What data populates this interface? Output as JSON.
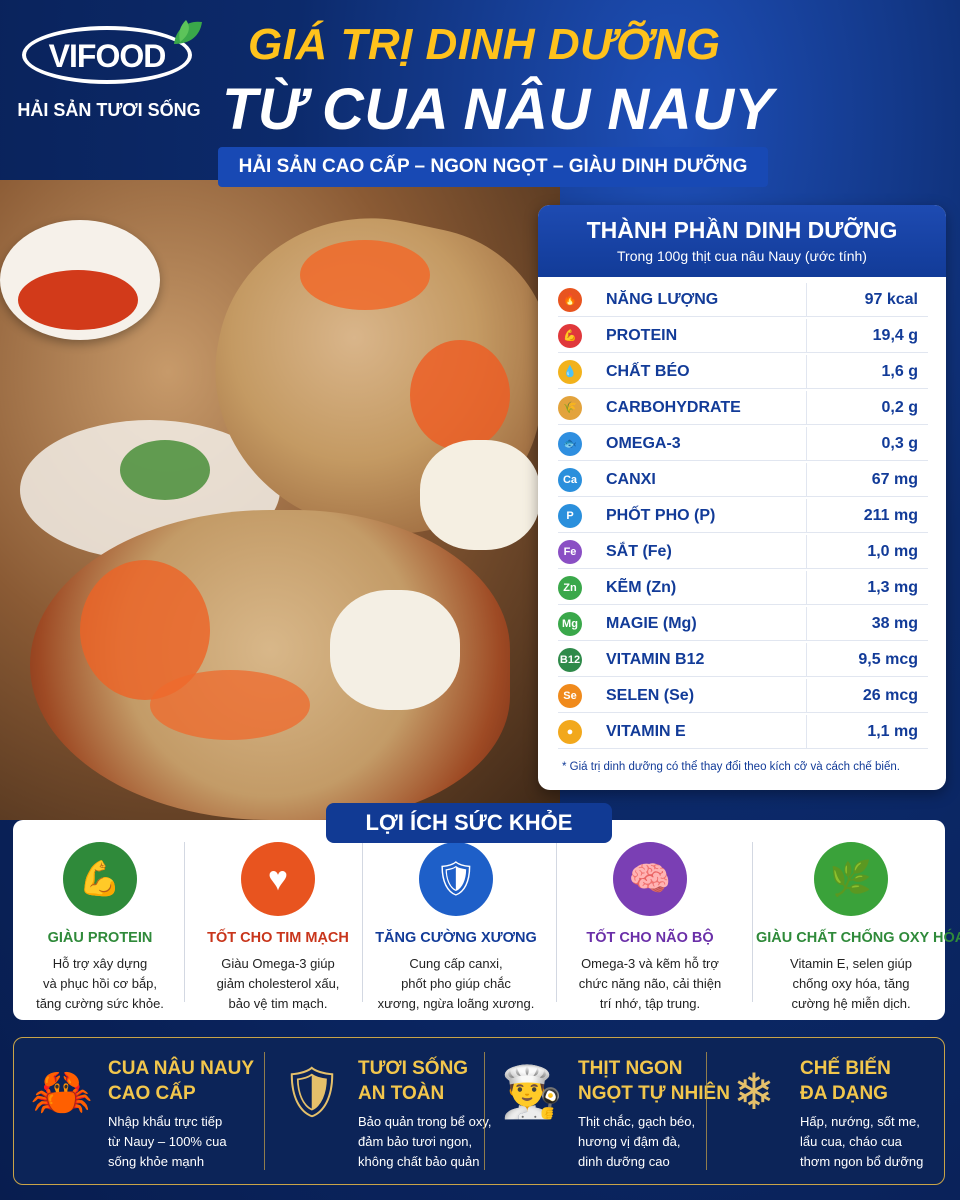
{
  "brand": {
    "logo": "VIFOOD",
    "tagline": "HẢI SẢN TƯƠI SỐNG"
  },
  "title": {
    "line1": "GIÁ TRỊ DINH DƯỠNG",
    "line2": "TỪ CUA NÂU NAUY",
    "subtitle": "HẢI SẢN CAO CẤP – NGON NGỌT – GIÀU DINH DƯỠNG"
  },
  "nutrition": {
    "title": "THÀNH PHẦN DINH DƯỠNG",
    "subtitle": "Trong 100g thịt cua nâu Nauy (ước tính)",
    "rows": [
      {
        "icon": "fire-icon",
        "icon_text": "🔥",
        "color": "#e8541f",
        "name": "NĂNG LƯỢNG",
        "value": "97 kcal"
      },
      {
        "icon": "muscle-icon",
        "icon_text": "💪",
        "color": "#e0383b",
        "name": "PROTEIN",
        "value": "19,4 g"
      },
      {
        "icon": "oil-drop-icon",
        "icon_text": "💧",
        "color": "#f2b21c",
        "name": "CHẤT BÉO",
        "value": "1,6 g"
      },
      {
        "icon": "wheat-icon",
        "icon_text": "🌾",
        "color": "#e3a33c",
        "name": "CARBOHYDRATE",
        "value": "0,2 g"
      },
      {
        "icon": "fish-icon",
        "icon_text": "🐟",
        "color": "#2f8fe0",
        "name": "OMEGA-3",
        "value": "0,3 g"
      },
      {
        "icon": "calcium-icon",
        "icon_text": "Ca",
        "color": "#2a8fdc",
        "name": "CANXI",
        "value": "67 mg"
      },
      {
        "icon": "phosphorus-icon",
        "icon_text": "P",
        "color": "#2a8fdc",
        "name": "PHỐT PHO (P)",
        "value": "211 mg"
      },
      {
        "icon": "iron-icon",
        "icon_text": "Fe",
        "color": "#8a4fc4",
        "name": "SẮT (Fe)",
        "value": "1,0 mg"
      },
      {
        "icon": "zinc-icon",
        "icon_text": "Zn",
        "color": "#3aa84a",
        "name": "KẼM (Zn)",
        "value": "1,3 mg"
      },
      {
        "icon": "magnesium-icon",
        "icon_text": "Mg",
        "color": "#3aa84a",
        "name": "MAGIE (Mg)",
        "value": "38 mg"
      },
      {
        "icon": "vitamin-b12-icon",
        "icon_text": "B12",
        "color": "#2f8a4a",
        "name": "VITAMIN B12",
        "value": "9,5 mcg"
      },
      {
        "icon": "selenium-icon",
        "icon_text": "Se",
        "color": "#f08a1c",
        "name": "SELEN (Se)",
        "value": "26 mcg"
      },
      {
        "icon": "vitamin-e-icon",
        "icon_text": "●",
        "color": "#f2a81c",
        "name": "VITAMIN E",
        "value": "1,1 mg"
      }
    ],
    "note": "* Giá trị dinh dưỡng có thể thay đổi theo kích cỡ và cách chế biến."
  },
  "benefits": {
    "title": "LỢI ÍCH SỨC KHỎE",
    "items": [
      {
        "icon": "muscle-body-icon",
        "glyph": "💪",
        "color": "#2f8a3a",
        "text_color": "#2f8a3a",
        "title": "GIÀU PROTEIN",
        "desc": [
          "Hỗ trợ xây dựng",
          "và phục hồi cơ bắp,",
          "tăng cường sức khỏe."
        ]
      },
      {
        "icon": "heart-icon",
        "glyph": "♥",
        "color": "#e8541f",
        "text_color": "#c8351b",
        "title": "TỐT CHO TIM MẠCH",
        "desc": [
          "Giàu Omega-3 giúp",
          "giảm cholesterol xấu,",
          "bảo vệ tim mạch."
        ]
      },
      {
        "icon": "bone-shield-icon",
        "glyph": "🛡",
        "color": "#1e5fc8",
        "text_color": "#123b98",
        "title": "TĂNG CƯỜNG XƯƠNG",
        "desc": [
          "Cung cấp canxi,",
          "phốt pho giúp chắc",
          "xương, ngừa loãng xương."
        ]
      },
      {
        "icon": "brain-icon",
        "glyph": "🧠",
        "color": "#7a3fb4",
        "text_color": "#6a2fa8",
        "title": "TỐT CHO NÃO BỘ",
        "desc": [
          "Omega-3 và kẽm hỗ trợ",
          "chức năng não, cải thiện",
          "trí nhớ, tập trung."
        ]
      },
      {
        "icon": "leaf-icon",
        "glyph": "🌿",
        "color": "#3aa23a",
        "text_color": "#2f8a3a",
        "title": "GIÀU CHẤT CHỐNG OXY HÓA",
        "desc": [
          "Vitamin E, selen giúp",
          "chống oxy hóa, tăng",
          "cường hệ miễn dịch."
        ]
      }
    ]
  },
  "features": [
    {
      "icon": "crab-icon",
      "glyph": "🦀",
      "title": [
        "CUA NÂU NAUY",
        "CAO CẤP"
      ],
      "desc": [
        "Nhập khẩu trực tiếp",
        "từ Nauy – 100% cua",
        "sống khỏe mạnh"
      ]
    },
    {
      "icon": "shield-check-icon",
      "glyph": "🛡",
      "title": [
        "TƯƠI SỐNG",
        "AN TOÀN"
      ],
      "desc": [
        "Bảo quản trong bể oxy,",
        "đảm bảo tươi ngon,",
        "không chất bảo quản"
      ]
    },
    {
      "icon": "chef-hat-icon",
      "glyph": "👨‍🍳",
      "title": [
        "THỊT NGON",
        "NGỌT TỰ NHIÊN"
      ],
      "desc": [
        "Thịt chắc, gạch béo,",
        "hương vị đậm đà,",
        "dinh dưỡng cao"
      ]
    },
    {
      "icon": "snowflake-icon",
      "glyph": "❄",
      "title": [
        "CHẾ BIẾN",
        "ĐA DẠNG"
      ],
      "desc": [
        "Hấp, nướng, sốt me,",
        "lẩu cua, cháo cua",
        "thơm ngon bổ dưỡng"
      ]
    }
  ]
}
